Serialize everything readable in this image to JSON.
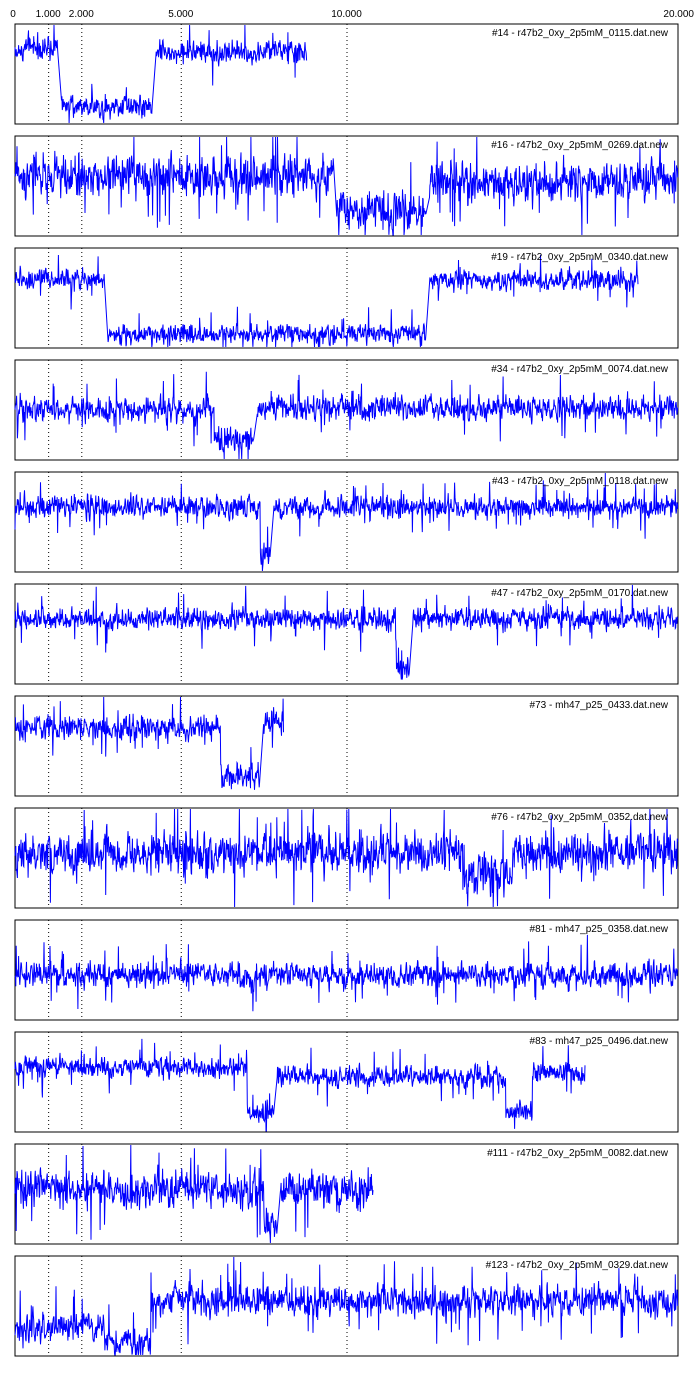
{
  "chart_data": {
    "type": "line",
    "x_axis": {
      "range": [
        0,
        20000
      ],
      "ticks": [
        {
          "value": 0,
          "label": "0"
        },
        {
          "value": 1000,
          "label": "1.000"
        },
        {
          "value": 2000,
          "label": "2.000"
        },
        {
          "value": 5000,
          "label": "5.000"
        },
        {
          "value": 10000,
          "label": "10.000"
        },
        {
          "value": 20000,
          "label": "20.000"
        }
      ],
      "vertical_dotted_lines_at": [
        1000,
        2000,
        5000,
        10000
      ]
    },
    "panels": [
      {
        "label": "#14 - r47b2_0xy_2p5mM_0115.dat.new",
        "x_end": 8800,
        "levels": [
          [
            0,
            1300,
            0.75
          ],
          [
            1400,
            4150,
            0.18
          ],
          [
            4250,
            8800,
            0.72
          ]
        ],
        "noise": 0.09
      },
      {
        "label": "#16 - r47b2_0xy_2p5mM_0269.dat.new",
        "x_end": 20000,
        "levels": [
          [
            0,
            9600,
            0.6
          ],
          [
            9700,
            12400,
            0.25
          ],
          [
            12500,
            20000,
            0.55
          ]
        ],
        "noise": 0.16
      },
      {
        "label": "#19 - r47b2_0xy_2p5mM_0340.dat.new",
        "x_end": 18800,
        "levels": [
          [
            0,
            2700,
            0.68
          ],
          [
            2800,
            12400,
            0.14
          ],
          [
            12500,
            18800,
            0.68
          ]
        ],
        "noise": 0.08
      },
      {
        "label": "#34 - r47b2_0xy_2p5mM_0074.dat.new",
        "x_end": 20000,
        "levels": [
          [
            0,
            6000,
            0.5
          ],
          [
            6000,
            7200,
            0.2
          ],
          [
            7300,
            20000,
            0.52
          ]
        ],
        "noise": 0.1
      },
      {
        "label": "#43 - r47b2_0xy_2p5mM_0118.dat.new",
        "x_end": 20000,
        "levels": [
          [
            0,
            7400,
            0.65
          ],
          [
            7400,
            7700,
            0.15
          ],
          [
            7800,
            20000,
            0.65
          ]
        ],
        "noise": 0.09
      },
      {
        "label": "#47 - r47b2_0xy_2p5mM_0170.dat.new",
        "x_end": 20000,
        "levels": [
          [
            0,
            11500,
            0.65
          ],
          [
            11500,
            11900,
            0.15
          ],
          [
            12000,
            20000,
            0.65
          ]
        ],
        "noise": 0.09
      },
      {
        "label": "#73 - mh47_p25_0433.dat.new",
        "x_end": 8100,
        "levels": [
          [
            0,
            6200,
            0.68
          ],
          [
            6200,
            7400,
            0.2
          ],
          [
            7500,
            8100,
            0.75
          ]
        ],
        "noise": 0.1
      },
      {
        "label": "#76 - r47b2_0xy_2p5mM_0352.dat.new",
        "x_end": 20000,
        "levels": [
          [
            0,
            13500,
            0.55
          ],
          [
            13500,
            15000,
            0.3
          ],
          [
            15000,
            20000,
            0.55
          ]
        ],
        "noise": 0.17
      },
      {
        "label": "#81 - mh47_p25_0358.dat.new",
        "x_end": 20000,
        "levels": [
          [
            0,
            20000,
            0.45
          ]
        ],
        "noise": 0.1
      },
      {
        "label": "#83 - mh47_p25_0496.dat.new",
        "x_end": 17200,
        "levels": [
          [
            0,
            7000,
            0.65
          ],
          [
            7000,
            7800,
            0.2
          ],
          [
            7900,
            14800,
            0.55
          ],
          [
            14800,
            15600,
            0.2
          ],
          [
            15600,
            17200,
            0.6
          ]
        ],
        "noise": 0.08
      },
      {
        "label": "#111 - r47b2_0xy_2p5mM_0082.dat.new",
        "x_end": 10800,
        "levels": [
          [
            0,
            7500,
            0.55
          ],
          [
            7500,
            7900,
            0.2
          ],
          [
            8000,
            10800,
            0.55
          ]
        ],
        "noise": 0.15
      },
      {
        "label": "#123 - r47b2_0xy_2p5mM_0329.dat.new",
        "x_end": 20000,
        "levels": [
          [
            0,
            1000,
            0.25
          ],
          [
            1000,
            2700,
            0.3
          ],
          [
            2700,
            4100,
            0.12
          ],
          [
            4100,
            20000,
            0.55
          ]
        ],
        "noise": 0.12
      }
    ]
  }
}
